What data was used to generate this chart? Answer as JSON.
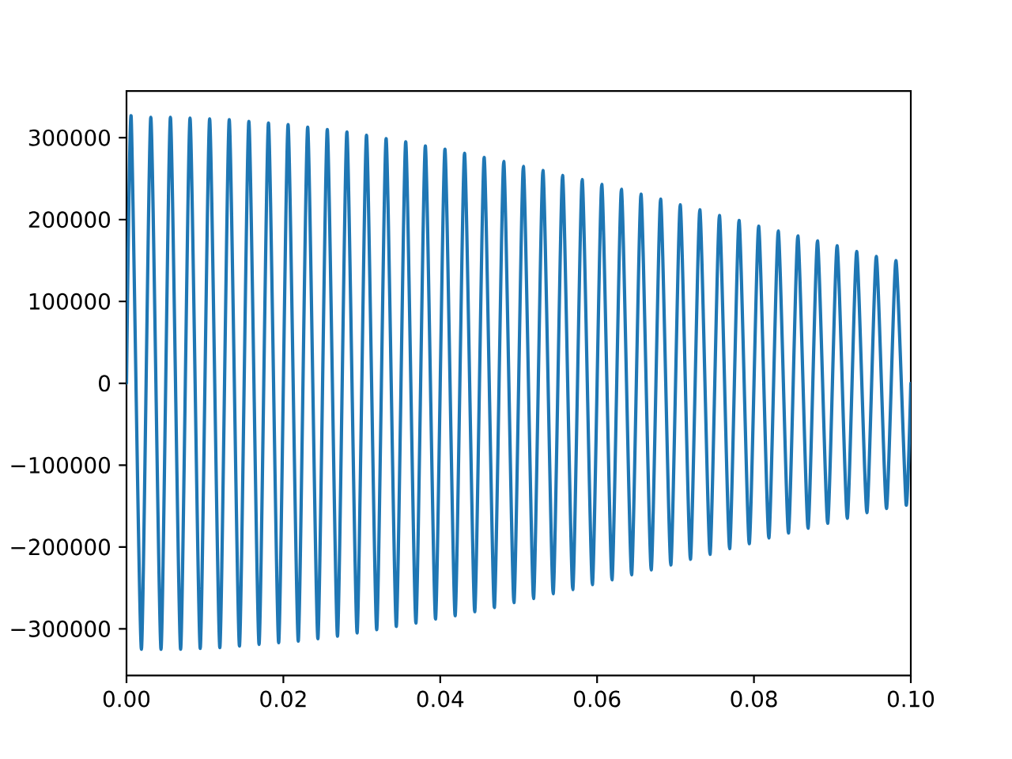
{
  "chart_data": {
    "type": "line",
    "color": "#1f77b4",
    "x": [
      0,
      0.0006,
      0.0019,
      0.0031,
      0.0044,
      0.0056,
      0.0069,
      0.0081,
      0.0094,
      0.0106,
      0.0119,
      0.0131,
      0.0144,
      0.0156,
      0.0169,
      0.0181,
      0.0194,
      0.0206,
      0.0219,
      0.0231,
      0.0244,
      0.0256,
      0.0269,
      0.0281,
      0.0294,
      0.0306,
      0.0319,
      0.0331,
      0.0344,
      0.0356,
      0.0369,
      0.0381,
      0.0394,
      0.0406,
      0.0419,
      0.0431,
      0.0444,
      0.0456,
      0.0469,
      0.0481,
      0.0494,
      0.0506,
      0.0519,
      0.0531,
      0.0544,
      0.0556,
      0.0569,
      0.0581,
      0.0594,
      0.0606,
      0.0619,
      0.0631,
      0.0644,
      0.0656,
      0.0669,
      0.0681,
      0.0694,
      0.0706,
      0.0719,
      0.0731,
      0.0744,
      0.0756,
      0.0769,
      0.0781,
      0.0794,
      0.0806,
      0.0819,
      0.0831,
      0.0844,
      0.0856,
      0.0869,
      0.0881,
      0.0894,
      0.0906,
      0.0919,
      0.0931,
      0.0944,
      0.0956,
      0.0969,
      0.0981,
      0.0994,
      0.1
    ],
    "values": [
      0,
      325000,
      -325000,
      325000,
      -325000,
      325000,
      -325000,
      324000,
      -324000,
      323000,
      -323000,
      322000,
      -321000,
      320000,
      -319000,
      318000,
      -317000,
      316000,
      -315000,
      313000,
      -312000,
      310000,
      -309000,
      307000,
      -305000,
      303000,
      -301000,
      299000,
      -297000,
      295000,
      -293000,
      290000,
      -288000,
      286000,
      -284000,
      281000,
      -279000,
      276000,
      -274000,
      271000,
      -268000,
      265000,
      -263000,
      260000,
      -257000,
      254000,
      -252000,
      249000,
      -246000,
      243000,
      -240000,
      237000,
      -234000,
      231000,
      -228000,
      225000,
      -222000,
      218000,
      -215000,
      212000,
      -209000,
      205000,
      -202000,
      199000,
      -196000,
      192000,
      -189000,
      186000,
      -183000,
      180000,
      -177000,
      174000,
      -171000,
      168000,
      -165000,
      161000,
      -158000,
      155000,
      -153000,
      150000,
      -148000,
      0
    ],
    "xlim": [
      0,
      0.1
    ],
    "ylim": [
      -357000,
      357000
    ],
    "xticks": [
      {
        "value": 0,
        "label": "0.00"
      },
      {
        "value": 0.02,
        "label": "0.02"
      },
      {
        "value": 0.04,
        "label": "0.04"
      },
      {
        "value": 0.06,
        "label": "0.06"
      },
      {
        "value": 0.08,
        "label": "0.08"
      },
      {
        "value": 0.1,
        "label": "0.10"
      }
    ],
    "yticks": [
      {
        "value": -300000,
        "label": "−300000"
      },
      {
        "value": -200000,
        "label": "−200000"
      },
      {
        "value": -100000,
        "label": "−100000"
      },
      0,
      100000,
      200000,
      300000
    ]
  }
}
